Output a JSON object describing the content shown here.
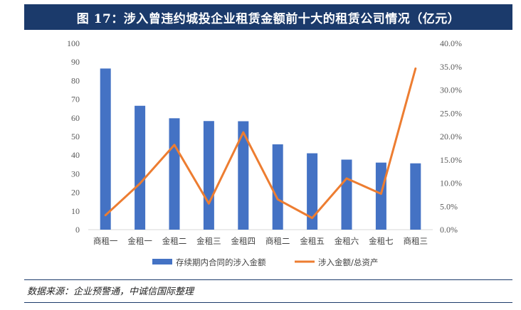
{
  "header": {
    "title": "图 17：涉入曾违约城投企业租赁金额前十大的租赁公司情况（亿元）"
  },
  "source": {
    "text": "数据来源：企业预警通，中诚信国际整理"
  },
  "colors": {
    "title_bg": "#1b3a6b",
    "bar": "#4472c4",
    "line": "#ed7d31"
  },
  "chart_data": {
    "type": "bar",
    "categories": [
      "商租一",
      "金租一",
      "金租二",
      "金租三",
      "金租四",
      "商租二",
      "金租五",
      "金租六",
      "金租七",
      "商租三"
    ],
    "y_ticks": [
      "0",
      "10",
      "20",
      "30",
      "40",
      "50",
      "60",
      "70",
      "80",
      "90",
      "100"
    ],
    "y2_ticks": [
      "0.0%",
      "5.0%",
      "10.0%",
      "15.0%",
      "20.0%",
      "25.0%",
      "30.0%",
      "35.0%",
      "40.0%"
    ],
    "ylim": [
      0,
      100
    ],
    "y2lim": [
      0,
      0.4
    ],
    "grid": false,
    "legend_position": "bottom",
    "series": [
      {
        "name": "存续期内合同的涉入金额",
        "type": "bar",
        "axis": "left",
        "values": [
          86.5,
          66.5,
          59.8,
          58.3,
          58.2,
          45.8,
          41.0,
          37.6,
          36.0,
          35.6
        ]
      },
      {
        "name": "涉入金额/总资产",
        "type": "line",
        "axis": "right",
        "values": [
          0.031,
          0.099,
          0.182,
          0.056,
          0.209,
          0.065,
          0.025,
          0.11,
          0.077,
          0.346
        ]
      }
    ]
  }
}
